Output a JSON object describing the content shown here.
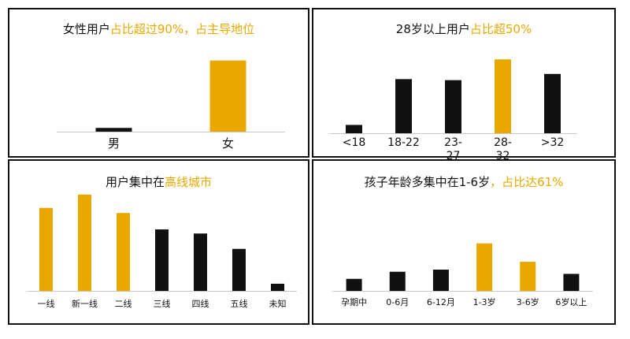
{
  "colors": {
    "highlight": "#E8A800",
    "normal": "#111111",
    "axis": "#c8c8c8"
  },
  "chart_data": [
    {
      "type": "bar",
      "title_main": "女性用户",
      "title_highlight": "占比超过90%，占主导地位",
      "categories": [
        "男",
        "女"
      ],
      "values": [
        5,
        95
      ],
      "highlight": [
        false,
        true
      ],
      "ylim": [
        0,
        100
      ]
    },
    {
      "type": "bar",
      "title_main": "28岁以上用户",
      "title_highlight": "占比超50%",
      "categories": [
        "<18",
        "18-22",
        "23-27",
        "28-32",
        ">32"
      ],
      "tick_labels": [
        [
          "<18"
        ],
        [
          "18-22"
        ],
        [
          "23-",
          "27"
        ],
        [
          "28-",
          "32"
        ],
        [
          ">32"
        ]
      ],
      "values": [
        8,
        52,
        51,
        71,
        57
      ],
      "highlight": [
        false,
        false,
        false,
        true,
        false
      ],
      "ylim": [
        0,
        75
      ]
    },
    {
      "type": "bar",
      "title_main": "用户集中在",
      "title_highlight": "高线城市",
      "categories": [
        "一线",
        "新一线",
        "二线",
        "三线",
        "四线",
        "五线",
        "未知"
      ],
      "values": [
        81,
        94,
        76,
        60,
        56,
        41,
        7
      ],
      "highlight": [
        true,
        true,
        true,
        false,
        false,
        false,
        false
      ],
      "ylim": [
        0,
        100
      ]
    },
    {
      "type": "bar",
      "title_main": "孩子年龄多集中在1-6岁",
      "title_highlight": "，占比达61%",
      "categories": [
        "孕期中",
        "0-6月",
        "6-12月",
        "1-3岁",
        "3-6岁",
        "6岁以上"
      ],
      "values": [
        17,
        27,
        30,
        67,
        41,
        24
      ],
      "highlight": [
        false,
        false,
        false,
        true,
        true,
        false
      ],
      "ylim": [
        0,
        100
      ]
    }
  ]
}
